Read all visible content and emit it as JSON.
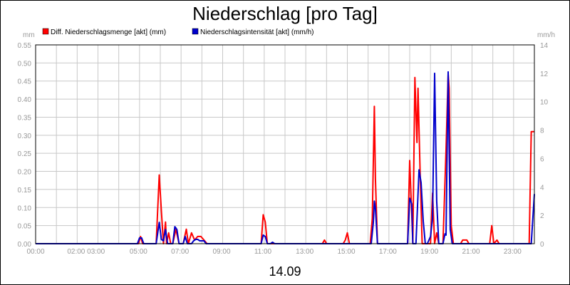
{
  "chart_data": {
    "type": "line",
    "title": "Niederschlag [pro Tag]",
    "date_label": "14.09",
    "left_axis_unit": "mm",
    "right_axis_unit": "mm/h",
    "ylim_left": [
      0,
      0.55
    ],
    "ylim_right": [
      0,
      14
    ],
    "xlim_hours": [
      0,
      24
    ],
    "grid": true,
    "legend_position": "top-left",
    "x_tick_labels": [
      "00:00",
      "02:00 03:00",
      "05:00",
      "07:00",
      "09:00",
      "11:00",
      "13:00",
      "15:00",
      "17:00",
      "19:00",
      "21:00",
      "23:00"
    ],
    "y_tick_labels_left": [
      "0.00",
      "0.05",
      "0.10",
      "0.15",
      "0.20",
      "0.25",
      "0.30",
      "0.35",
      "0.40",
      "0.45",
      "0.50",
      "0.55"
    ],
    "y_tick_labels_right": [
      "0",
      "2",
      "4",
      "6",
      "8",
      "10",
      "12",
      "14"
    ],
    "series": [
      {
        "name": "Diff. Niederschlagsmenge [akt] (mm)",
        "axis": "left",
        "color": "#ff0000",
        "x": [
          0,
          4.95,
          5.05,
          5.15,
          5.8,
          5.95,
          6.05,
          6.15,
          6.25,
          6.3,
          6.4,
          6.5,
          6.6,
          6.75,
          6.9,
          7.1,
          7.25,
          7.35,
          7.5,
          7.65,
          7.8,
          7.95,
          8.1,
          8.25,
          8.4,
          10.85,
          10.95,
          11.05,
          11.15,
          11.3,
          13.8,
          13.9,
          14.0,
          14.8,
          14.9,
          15.0,
          15.1,
          15.2,
          16.1,
          16.2,
          16.3,
          16.35,
          16.45,
          16.6,
          17.9,
          18.0,
          18.15,
          18.25,
          18.35,
          18.4,
          18.5,
          18.6,
          18.7,
          18.8,
          19.0,
          19.1,
          19.2,
          19.3,
          19.4,
          19.5,
          19.6,
          19.75,
          19.85,
          19.9,
          20.0,
          20.1,
          20.2,
          20.45,
          20.55,
          20.65,
          20.75,
          20.85,
          21.85,
          21.95,
          22.05,
          22.2,
          22.3,
          22.4,
          23.75,
          23.85,
          24.0
        ],
        "y": [
          0,
          0,
          0.02,
          0,
          0,
          0.19,
          0.09,
          0,
          0.06,
          0,
          0.03,
          0,
          0,
          0.04,
          0,
          0,
          0.04,
          0,
          0.03,
          0.01,
          0.02,
          0.02,
          0.01,
          0,
          0,
          0,
          0.08,
          0.06,
          0,
          0,
          0,
          0.01,
          0,
          0,
          0.01,
          0.03,
          0,
          0,
          0,
          0.07,
          0.38,
          0.18,
          0,
          0,
          0,
          0.23,
          0,
          0.46,
          0.28,
          0.43,
          0.2,
          0,
          0,
          0,
          0,
          0.14,
          0,
          0.03,
          0,
          0,
          0,
          0.26,
          0.47,
          0.43,
          0.05,
          0,
          0,
          0,
          0.01,
          0.01,
          0.01,
          0,
          0,
          0.05,
          0,
          0.01,
          0,
          0,
          0,
          0.31,
          0.31
        ]
      },
      {
        "name": "Niederschlagsintensität [akt] (mm/h)",
        "axis": "right",
        "color": "#0000cc",
        "x": [
          0,
          4.9,
          5.0,
          5.1,
          5.2,
          5.8,
          5.95,
          6.05,
          6.15,
          6.25,
          6.35,
          6.6,
          6.7,
          6.8,
          6.9,
          7.1,
          7.2,
          7.3,
          7.5,
          7.6,
          7.7,
          7.8,
          7.9,
          8.0,
          8.1,
          8.2,
          10.85,
          10.95,
          11.05,
          11.15,
          11.3,
          11.4,
          11.5,
          16.15,
          16.25,
          16.3,
          16.35,
          16.45,
          16.6,
          17.9,
          18.0,
          18.1,
          18.15,
          18.3,
          18.45,
          18.55,
          18.65,
          18.75,
          18.85,
          19.0,
          19.1,
          19.2,
          19.3,
          19.4,
          19.5,
          19.6,
          19.7,
          19.75,
          19.85,
          19.95,
          20.05,
          20.15,
          20.3,
          23.85,
          24.0
        ],
        "y": [
          0,
          0,
          0.4,
          0.4,
          0,
          0,
          1.5,
          0.3,
          0.2,
          1.0,
          0,
          0,
          1.2,
          1.0,
          0,
          0,
          0.5,
          0,
          0,
          0.2,
          0.3,
          0.3,
          0.2,
          0.2,
          0.2,
          0,
          0,
          0.6,
          0.5,
          0,
          0,
          0.1,
          0,
          0,
          1.5,
          3.0,
          2.5,
          0,
          0,
          0,
          3.2,
          2.8,
          0,
          0,
          5.2,
          4.3,
          1.6,
          0,
          0,
          0.5,
          1.8,
          12.0,
          3.0,
          0,
          0,
          0,
          0.7,
          0.6,
          12.1,
          1.0,
          0,
          0,
          0,
          0,
          3.5
        ]
      }
    ]
  }
}
